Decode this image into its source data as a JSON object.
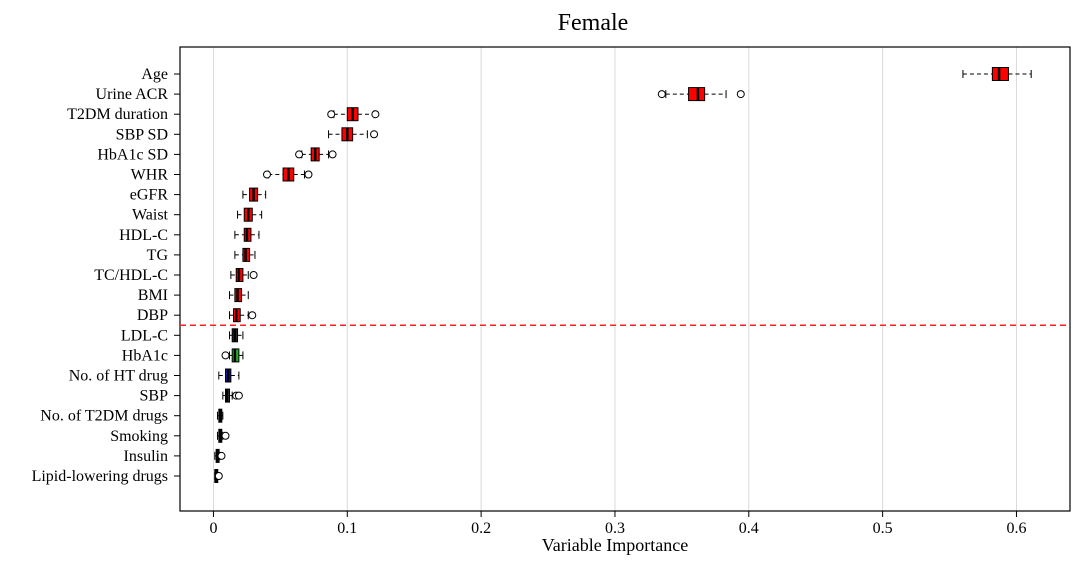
{
  "chart_data": {
    "type": "boxplot",
    "title": "Female",
    "xlabel": "Variable Importance",
    "ylabel": "",
    "xlim": [
      -0.025,
      0.64
    ],
    "xticks": [
      0,
      0.1,
      0.2,
      0.3,
      0.4,
      0.5,
      0.6
    ],
    "xtick_labels": [
      "0",
      "0.1",
      "0.2",
      "0.3",
      "0.4",
      "0.5",
      "0.6"
    ],
    "grid": "vertical",
    "threshold_after_index": 12,
    "threshold_color": "#ff2020",
    "categories": [
      "Age",
      "Urine ACR",
      "T2DM duration",
      "SBP SD",
      "HbA1c SD",
      "WHR",
      "eGFR",
      "Waist",
      "HDL-C",
      "TG",
      "TC/HDL-C",
      "BMI",
      "DBP",
      "LDL-C",
      "HbA1c",
      "No. of HT drug",
      "SBP",
      "No. of T2DM drugs",
      "Smoking",
      "Insulin",
      "Lipid-lowering drugs"
    ],
    "colors": [
      "#ff0000",
      "#ff0000",
      "#ff0000",
      "#ff0000",
      "#ff0000",
      "#ff0000",
      "#ff0000",
      "#ff0000",
      "#ff0000",
      "#ff0000",
      "#ff0000",
      "#ff0000",
      "#ff0000",
      "#2a2a2a",
      "#22aa22",
      "#1a1aa0",
      "#2a2a2a",
      "#2a2a2a",
      "#2a2a2a",
      "#2a2a2a",
      "#2a2a2a"
    ],
    "boxes": [
      {
        "whisker_low": 0.56,
        "q1": 0.582,
        "median": 0.587,
        "q3": 0.594,
        "whisker_high": 0.611,
        "outliers": []
      },
      {
        "whisker_low": 0.338,
        "q1": 0.355,
        "median": 0.362,
        "q3": 0.367,
        "whisker_high": 0.383,
        "outliers": [
          0.335,
          0.394
        ]
      },
      {
        "whisker_low": 0.09,
        "q1": 0.1,
        "median": 0.104,
        "q3": 0.108,
        "whisker_high": 0.12,
        "outliers": [
          0.088,
          0.121
        ]
      },
      {
        "whisker_low": 0.086,
        "q1": 0.096,
        "median": 0.1,
        "q3": 0.104,
        "whisker_high": 0.115,
        "outliers": [
          0.12
        ]
      },
      {
        "whisker_low": 0.066,
        "q1": 0.073,
        "median": 0.076,
        "q3": 0.079,
        "whisker_high": 0.086,
        "outliers": [
          0.064,
          0.089
        ]
      },
      {
        "whisker_low": 0.041,
        "q1": 0.052,
        "median": 0.056,
        "q3": 0.06,
        "whisker_high": 0.068,
        "outliers": [
          0.04,
          0.071
        ]
      },
      {
        "whisker_low": 0.022,
        "q1": 0.027,
        "median": 0.03,
        "q3": 0.033,
        "whisker_high": 0.039,
        "outliers": []
      },
      {
        "whisker_low": 0.018,
        "q1": 0.023,
        "median": 0.026,
        "q3": 0.029,
        "whisker_high": 0.036,
        "outliers": []
      },
      {
        "whisker_low": 0.016,
        "q1": 0.023,
        "median": 0.025,
        "q3": 0.028,
        "whisker_high": 0.034,
        "outliers": []
      },
      {
        "whisker_low": 0.016,
        "q1": 0.022,
        "median": 0.024,
        "q3": 0.027,
        "whisker_high": 0.031,
        "outliers": []
      },
      {
        "whisker_low": 0.013,
        "q1": 0.017,
        "median": 0.019,
        "q3": 0.022,
        "whisker_high": 0.026,
        "outliers": [
          0.03
        ]
      },
      {
        "whisker_low": 0.012,
        "q1": 0.016,
        "median": 0.018,
        "q3": 0.021,
        "whisker_high": 0.026,
        "outliers": []
      },
      {
        "whisker_low": 0.012,
        "q1": 0.015,
        "median": 0.017,
        "q3": 0.02,
        "whisker_high": 0.026,
        "outliers": [
          0.029
        ]
      },
      {
        "whisker_low": 0.012,
        "q1": 0.014,
        "median": 0.016,
        "q3": 0.018,
        "whisker_high": 0.022,
        "outliers": []
      },
      {
        "whisker_low": 0.012,
        "q1": 0.014,
        "median": 0.016,
        "q3": 0.019,
        "whisker_high": 0.022,
        "outliers": [
          0.009
        ]
      },
      {
        "whisker_low": 0.004,
        "q1": 0.009,
        "median": 0.011,
        "q3": 0.013,
        "whisker_high": 0.019,
        "outliers": []
      },
      {
        "whisker_low": 0.007,
        "q1": 0.009,
        "median": 0.01,
        "q3": 0.012,
        "whisker_high": 0.014,
        "outliers": [
          0.017,
          0.019
        ]
      },
      {
        "whisker_low": 0.003,
        "q1": 0.004,
        "median": 0.005,
        "q3": 0.006,
        "whisker_high": 0.007,
        "outliers": []
      },
      {
        "whisker_low": 0.003,
        "q1": 0.004,
        "median": 0.005,
        "q3": 0.006,
        "whisker_high": 0.007,
        "outliers": [
          0.009
        ]
      },
      {
        "whisker_low": 0.001,
        "q1": 0.002,
        "median": 0.003,
        "q3": 0.004,
        "whisker_high": 0.005,
        "outliers": [
          0.006
        ]
      },
      {
        "whisker_low": 0.001,
        "q1": 0.001,
        "median": 0.002,
        "q3": 0.003,
        "whisker_high": 0.004,
        "outliers": [
          0.004
        ]
      }
    ]
  }
}
